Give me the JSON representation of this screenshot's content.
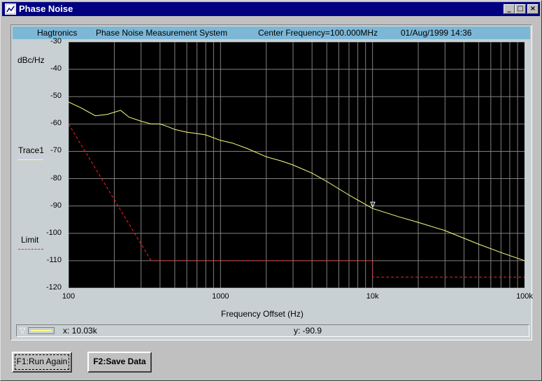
{
  "window": {
    "title": "Phase Noise",
    "minimize_icon": "minimize-icon",
    "maximize_icon": "maximize-icon",
    "close_icon": "close-icon"
  },
  "header": {
    "company": "Hagtronics",
    "system": "Phase Noise Measurement System",
    "center_frequency": "Center Frequency=100.000MHz",
    "datetime": "01/Aug/1999 14:36"
  },
  "legend": {
    "trace_name": "Trace1",
    "limit_name": "Limit"
  },
  "status": {
    "x_readout": "x: 10.03k",
    "y_readout": "y: -90.9"
  },
  "buttons": {
    "run_again": "F1:Run Again",
    "save_data": "F2:Save Data"
  },
  "colors": {
    "plot_background": "#000000",
    "grid": "#808080",
    "trace": "#ffff80",
    "limit": "#ff2020",
    "header_bar": "#7cb7d6",
    "titlebar": "#000080"
  },
  "chart_data": {
    "type": "line",
    "xlabel": "Frequency Offset (Hz)",
    "ylabel": "dBc/Hz",
    "xscale": "log",
    "xlim": [
      100,
      100000
    ],
    "ylim": [
      -120,
      -30
    ],
    "x_tick_labels": [
      "100",
      "1000",
      "10k",
      "100k"
    ],
    "x_tick_values": [
      100,
      1000,
      10000,
      100000
    ],
    "y_ticks": [
      -30,
      -40,
      -50,
      -60,
      -70,
      -80,
      -90,
      -100,
      -110,
      -120
    ],
    "grid": true,
    "series": [
      {
        "name": "Trace1",
        "color": "#ffff80",
        "style": "solid",
        "x": [
          100,
          120,
          150,
          180,
          220,
          250,
          300,
          350,
          400,
          450,
          500,
          600,
          700,
          800,
          1000,
          1200,
          1500,
          2000,
          2500,
          3000,
          4000,
          5000,
          7000,
          10000,
          15000,
          20000,
          30000,
          50000,
          70000,
          100000
        ],
        "y": [
          -52,
          -54,
          -57,
          -56.5,
          -55,
          -57.5,
          -59,
          -60,
          -60,
          -61,
          -62,
          -63,
          -63.5,
          -64,
          -66,
          -67,
          -69,
          -72,
          -73.5,
          -75,
          -78,
          -81,
          -86,
          -90.9,
          -94,
          -96,
          -99,
          -104,
          -107,
          -110
        ]
      },
      {
        "name": "Limit",
        "color": "#ff2020",
        "style": "dashed",
        "x": [
          100,
          350,
          10000,
          10000,
          100000
        ],
        "y": [
          -60,
          -110,
          -110,
          -116,
          -116
        ]
      }
    ],
    "marker": {
      "x": 10030,
      "y": -90.9
    }
  }
}
